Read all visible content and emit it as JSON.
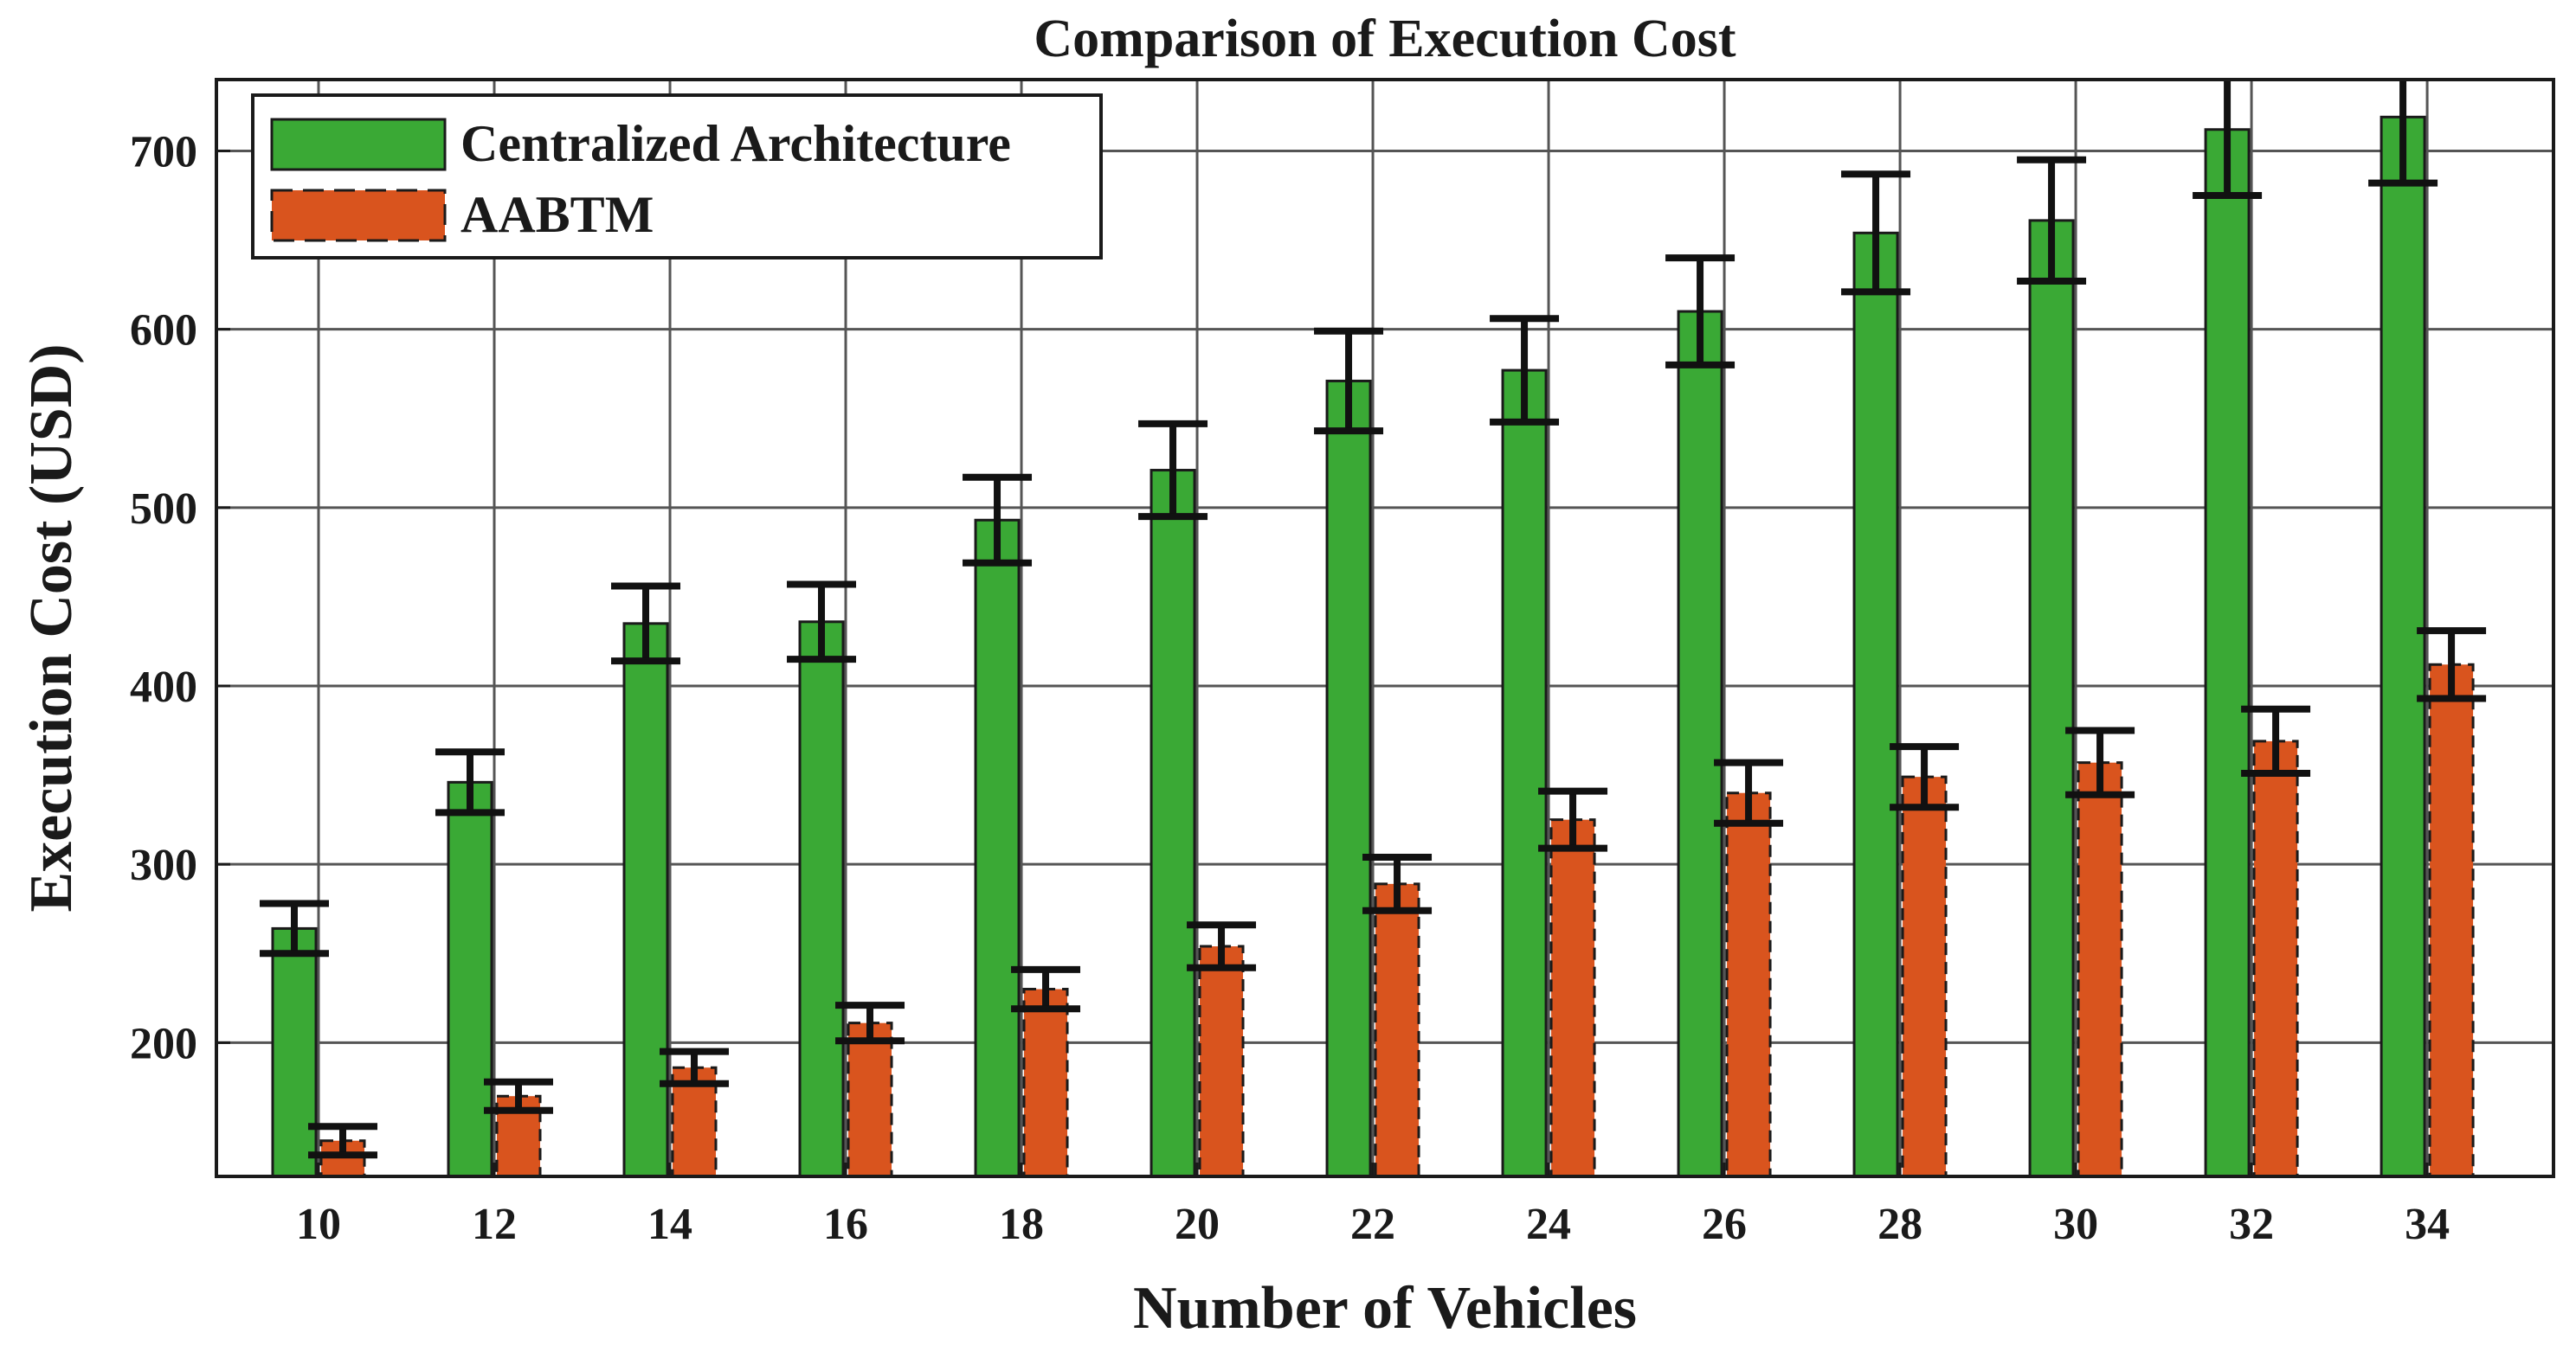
{
  "chart_data": {
    "type": "bar",
    "title": "Comparison of Execution Cost",
    "xlabel": "Number of Vehicles",
    "ylabel": "Execution Cost (USD)",
    "categories": [
      "10",
      "12",
      "14",
      "16",
      "18",
      "20",
      "22",
      "24",
      "26",
      "28",
      "30",
      "32",
      "34"
    ],
    "ylim": [
      125,
      740
    ],
    "yticks": [
      200,
      300,
      400,
      500,
      600,
      700
    ],
    "grid": true,
    "legend_position": "top-left",
    "series": [
      {
        "name": "Centralized Architecture",
        "color": "#3aa935",
        "values": [
          264,
          346,
          435,
          436,
          493,
          521,
          571,
          577,
          610,
          654,
          661,
          712,
          719
        ],
        "errors": [
          14,
          17,
          21,
          21,
          24,
          26,
          28,
          29,
          30,
          33,
          34,
          37,
          37
        ]
      },
      {
        "name": "AABTM",
        "color": "#d9541e",
        "values": [
          145,
          170,
          186,
          211,
          230,
          254,
          289,
          325,
          340,
          349,
          357,
          369,
          412
        ],
        "errors": [
          8,
          8,
          9,
          10,
          11,
          12,
          15,
          16,
          17,
          17,
          18,
          18,
          19
        ]
      }
    ]
  }
}
